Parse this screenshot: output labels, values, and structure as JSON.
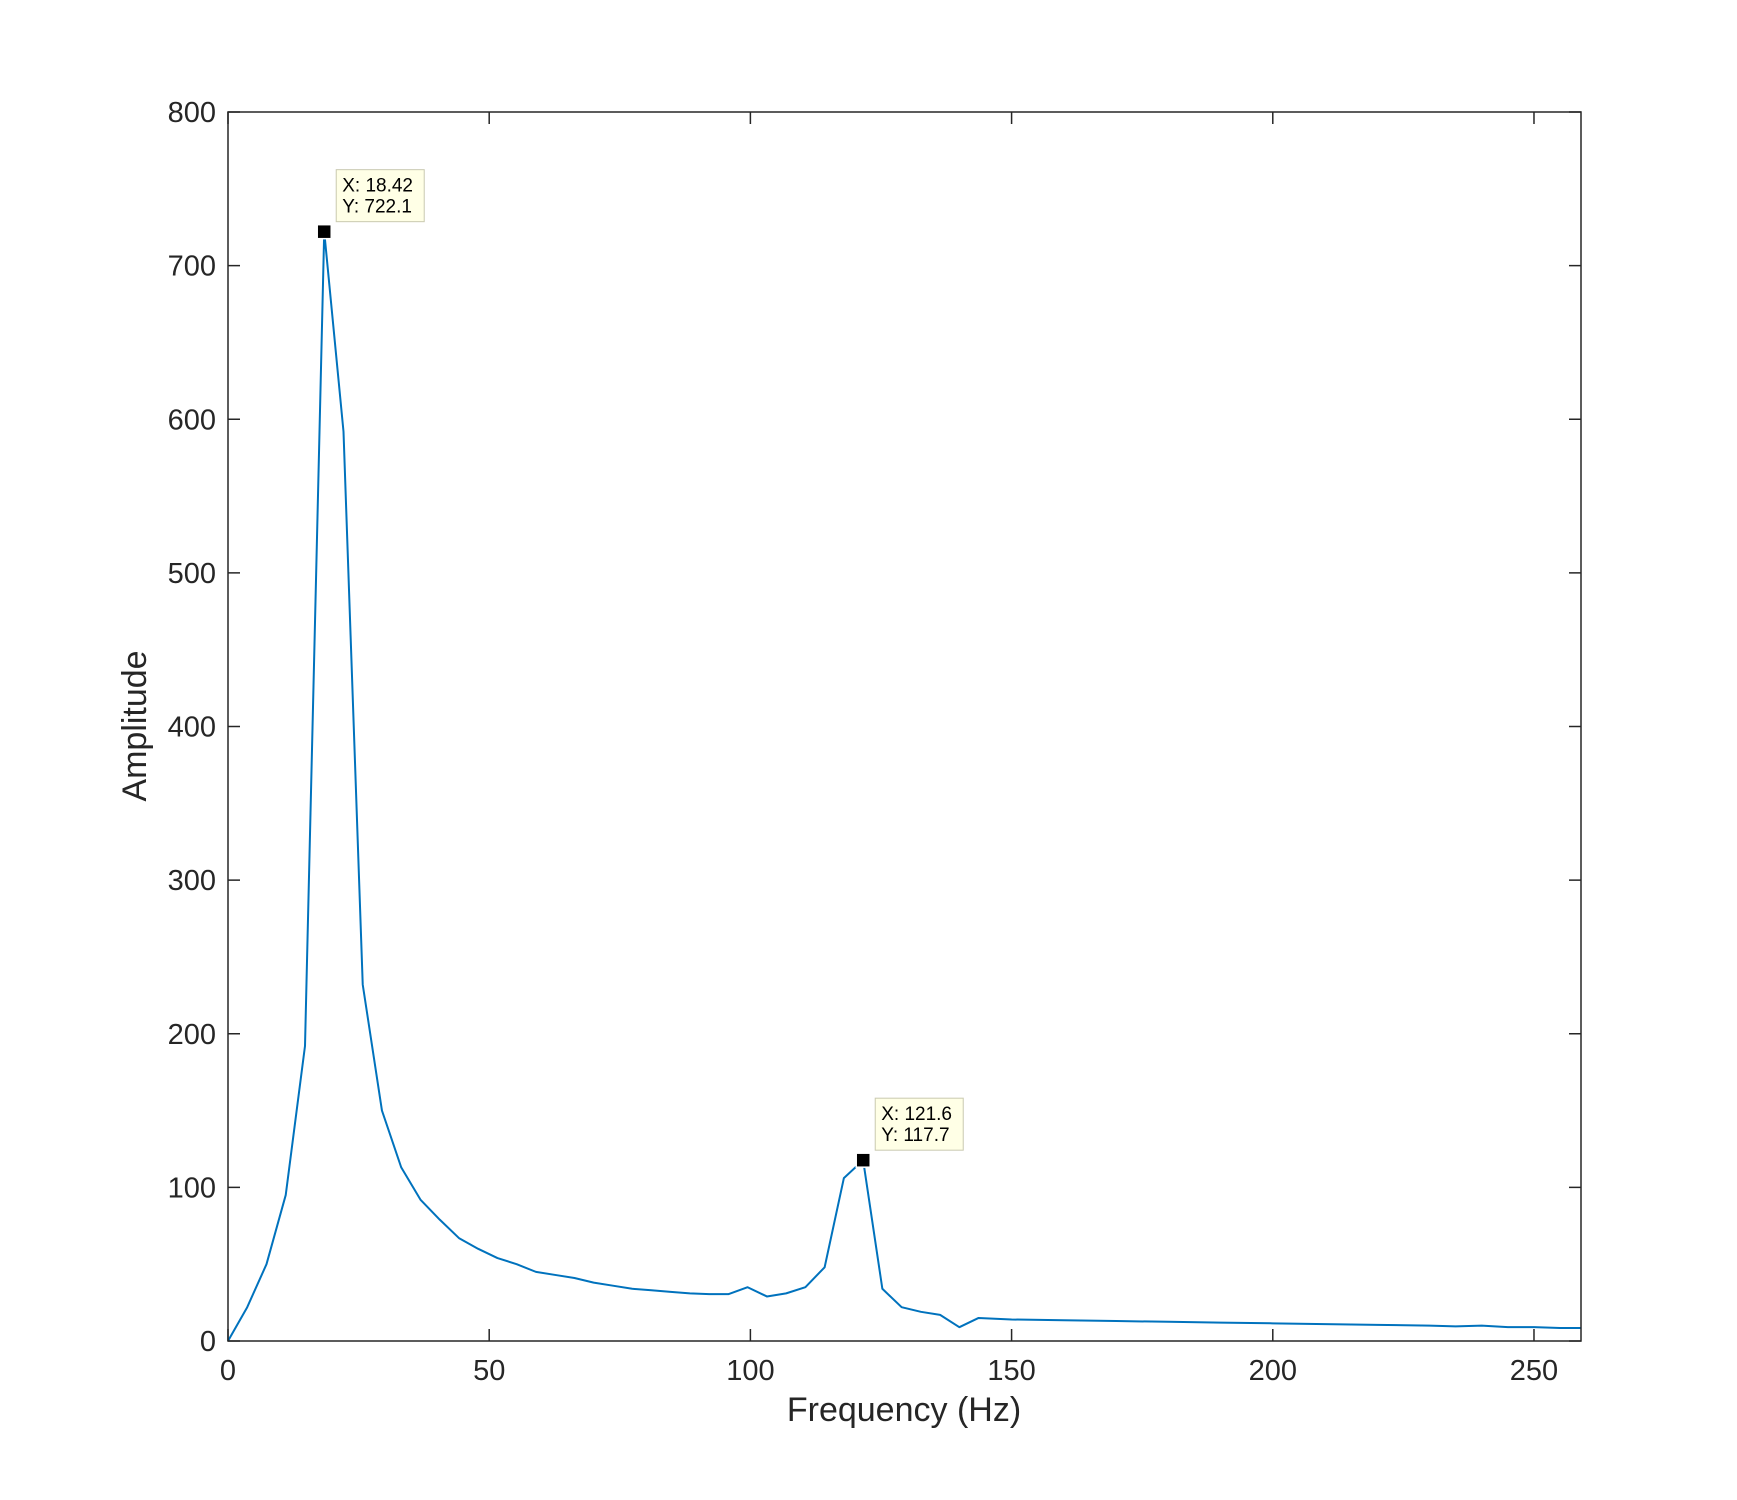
{
  "chart_data": {
    "type": "line",
    "title": "",
    "xlabel": "Frequency (Hz)",
    "ylabel": "Amplitude",
    "xlim": [
      0,
      259
    ],
    "ylim": [
      0,
      800
    ],
    "xticks": [
      "0",
      "50",
      "100",
      "150",
      "200",
      "250"
    ],
    "yticks": [
      "0",
      "100",
      "200",
      "300",
      "400",
      "500",
      "600",
      "700",
      "800"
    ],
    "grid": false,
    "legend": "none",
    "line_color": "#0072BD",
    "series": [
      {
        "x": [
          0,
          3.68,
          7.37,
          11.05,
          14.74,
          18.42,
          22.11,
          25.79,
          29.47,
          33.16,
          36.84,
          40.53,
          44.21,
          47.89,
          51.58,
          55.26,
          58.95,
          62.63,
          66.32,
          70,
          73.68,
          77.37,
          81.05,
          84.74,
          88.42,
          92.11,
          95.79,
          99.47,
          103.16,
          106.84,
          110.53,
          114.21,
          117.89,
          121.58,
          125.26,
          128.95,
          132.63,
          136.32,
          140,
          143.68,
          150,
          160,
          170,
          180,
          190,
          200,
          210,
          220,
          230,
          235,
          240,
          245,
          250,
          255,
          259
        ],
        "y": [
          0,
          22,
          50,
          95,
          192,
          722.1,
          592,
          232,
          150,
          113,
          92,
          79,
          67,
          60,
          54,
          50,
          45,
          43,
          41,
          38,
          36,
          34,
          33,
          32,
          31,
          30.5,
          30.5,
          35,
          29,
          31,
          35,
          48,
          106,
          117.7,
          34,
          22,
          19,
          17,
          9,
          15,
          14,
          13.5,
          13,
          12.5,
          12,
          11.5,
          11,
          10.5,
          10,
          9.5,
          10,
          9,
          9,
          8.5,
          8.5
        ]
      }
    ],
    "annotations": [
      {
        "x": 18.42,
        "y": 722.1,
        "line1": "X: 18.42",
        "line2": "Y: 722.1"
      },
      {
        "x": 121.6,
        "y": 117.7,
        "line1": "X: 121.6",
        "line2": "Y: 117.7"
      }
    ]
  }
}
